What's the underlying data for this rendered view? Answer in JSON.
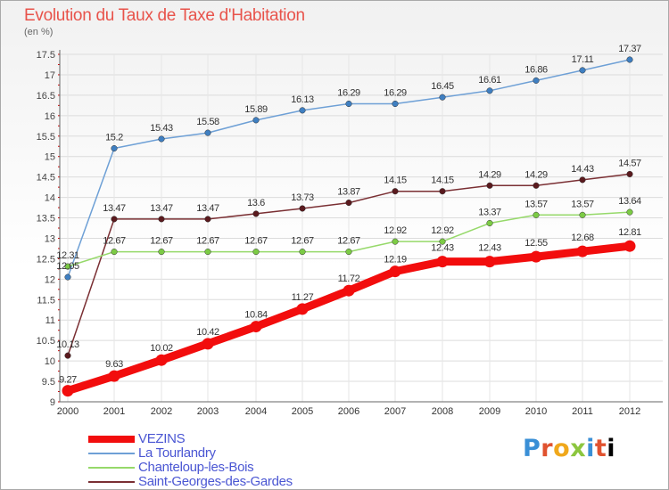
{
  "chart_data": {
    "type": "line",
    "title": "Evolution du Taux de Taxe d'Habitation",
    "unit_label": "(en %)",
    "xlabel": "",
    "ylabel": "",
    "ylim": [
      9,
      17.5
    ],
    "yticks": [
      "9",
      "9.5",
      "10",
      "10.5",
      "11",
      "11.5",
      "12",
      "12.5",
      "13",
      "13.5",
      "14",
      "14.5",
      "15",
      "15.5",
      "16",
      "16.5",
      "17",
      "17.5"
    ],
    "categories": [
      "2000",
      "2001",
      "2002",
      "2003",
      "2004",
      "2005",
      "2006",
      "2007",
      "2008",
      "2009",
      "2010",
      "2011",
      "2012"
    ],
    "legend_position": "bottom-left",
    "series": [
      {
        "name": "La Tourlandry",
        "color": "#6ea0d6",
        "marker": "#3f7fc1",
        "values": [
          12.05,
          15.2,
          15.43,
          15.58,
          15.89,
          16.13,
          16.29,
          16.29,
          16.45,
          16.61,
          16.86,
          17.11,
          17.37
        ],
        "labels": [
          "12.05",
          "15.2",
          "15.43",
          "15.58",
          "15.89",
          "16.13",
          "16.29",
          "16.29",
          "16.45",
          "16.61",
          "16.86",
          "17.11",
          "17.37"
        ]
      },
      {
        "name": "Saint-Georges-des-Gardes",
        "color": "#7a2f33",
        "marker": "#5a1a1e",
        "values": [
          10.13,
          13.47,
          13.47,
          13.47,
          13.6,
          13.73,
          13.87,
          14.15,
          14.15,
          14.29,
          14.29,
          14.43,
          14.57
        ],
        "labels": [
          "10.13",
          "13.47",
          "13.47",
          "13.47",
          "13.6",
          "13.73",
          "13.87",
          "14.15",
          "14.15",
          "14.29",
          "14.29",
          "14.43",
          "14.57"
        ]
      },
      {
        "name": "Chanteloup-les-Bois",
        "color": "#96d96a",
        "marker": "#7ccb45",
        "values": [
          12.31,
          12.67,
          12.67,
          12.67,
          12.67,
          12.67,
          12.67,
          12.92,
          12.92,
          13.37,
          13.57,
          13.57,
          13.64
        ],
        "labels": [
          "12.31",
          "12.67",
          "12.67",
          "12.67",
          "12.67",
          "12.67",
          "12.67",
          "12.92",
          "12.92",
          "13.37",
          "13.57",
          "13.57",
          "13.64"
        ]
      },
      {
        "name": "VEZINS",
        "color": "#f20d0d",
        "marker": "#f20d0d",
        "values": [
          9.27,
          9.63,
          10.02,
          10.42,
          10.84,
          11.27,
          11.72,
          12.19,
          12.43,
          12.43,
          12.55,
          12.68,
          12.81
        ],
        "labels": [
          "9.27",
          "9.63",
          "10.02",
          "10.42",
          "10.84",
          "11.27",
          "11.72",
          "12.19",
          "12.43",
          "12.43",
          "12.55",
          "12.68",
          "12.81"
        ]
      }
    ]
  },
  "legend": [
    {
      "name": "VEZINS",
      "color": "#f20d0d",
      "thick": true
    },
    {
      "name": "La Tourlandry",
      "color": "#6ea0d6",
      "thick": false
    },
    {
      "name": "Chanteloup-les-Bois",
      "color": "#96d96a",
      "thick": false
    },
    {
      "name": "Saint-Georges-des-Gardes",
      "color": "#7a2f33",
      "thick": false
    }
  ],
  "brand": [
    "P",
    "r",
    "o",
    "x",
    "i",
    "t",
    "i"
  ]
}
